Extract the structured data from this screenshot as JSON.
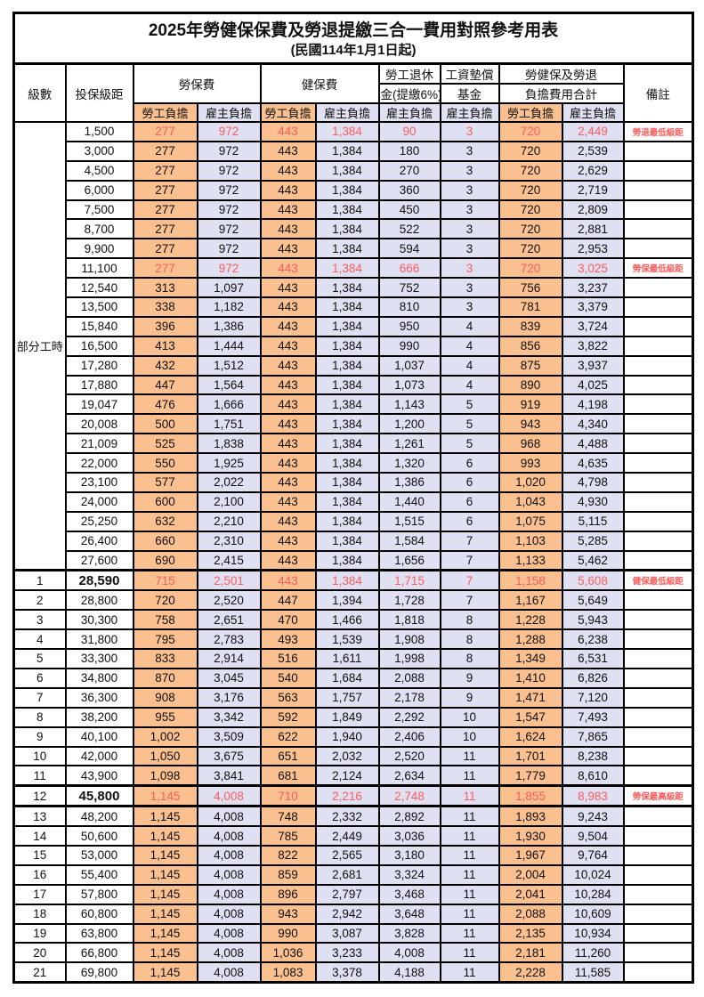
{
  "title": "2025年勞健保保費及勞退提繳三合一費用對照參考用表",
  "subtitle": "(民國114年1月1日起)",
  "header": {
    "level": "級數",
    "bracket": "投保級距",
    "labor_insurance": "勞保費",
    "health_insurance": "健保費",
    "pension_line1": "勞工退休",
    "pension_line2": "金(提繳6%)",
    "wage_fund_line1": "工資墊償",
    "wage_fund_line2": "基金",
    "total_line1": "勞健保及勞退",
    "total_line2": "負擔費用合計",
    "employee_burden": "勞工負擔",
    "employer_burden": "雇主負擔",
    "remark": "備註"
  },
  "group_label": "部分工時",
  "colors": {
    "employee_bg": "#fac090",
    "employer_bg": "#dfe0f2",
    "highlight_text": "#ff5c5c",
    "border": "#000000"
  },
  "rows": [
    {
      "level": "",
      "bracket": "1,500",
      "values": [
        "277",
        "972",
        "443",
        "1,384",
        "90",
        "3",
        "720",
        "2,449"
      ],
      "remark": "勞退最低級距",
      "highlight": true,
      "bold": false
    },
    {
      "level": "",
      "bracket": "3,000",
      "values": [
        "277",
        "972",
        "443",
        "1,384",
        "180",
        "3",
        "720",
        "2,539"
      ],
      "remark": "",
      "highlight": false,
      "bold": false
    },
    {
      "level": "",
      "bracket": "4,500",
      "values": [
        "277",
        "972",
        "443",
        "1,384",
        "270",
        "3",
        "720",
        "2,629"
      ],
      "remark": "",
      "highlight": false,
      "bold": false
    },
    {
      "level": "",
      "bracket": "6,000",
      "values": [
        "277",
        "972",
        "443",
        "1,384",
        "360",
        "3",
        "720",
        "2,719"
      ],
      "remark": "",
      "highlight": false,
      "bold": false
    },
    {
      "level": "",
      "bracket": "7,500",
      "values": [
        "277",
        "972",
        "443",
        "1,384",
        "450",
        "3",
        "720",
        "2,809"
      ],
      "remark": "",
      "highlight": false,
      "bold": false
    },
    {
      "level": "",
      "bracket": "8,700",
      "values": [
        "277",
        "972",
        "443",
        "1,384",
        "522",
        "3",
        "720",
        "2,881"
      ],
      "remark": "",
      "highlight": false,
      "bold": false
    },
    {
      "level": "",
      "bracket": "9,900",
      "values": [
        "277",
        "972",
        "443",
        "1,384",
        "594",
        "3",
        "720",
        "2,953"
      ],
      "remark": "",
      "highlight": false,
      "bold": false
    },
    {
      "level": "",
      "bracket": "11,100",
      "values": [
        "277",
        "972",
        "443",
        "1,384",
        "666",
        "3",
        "720",
        "3,025"
      ],
      "remark": "勞保最低級距",
      "highlight": true,
      "bold": false
    },
    {
      "level": "",
      "bracket": "12,540",
      "values": [
        "313",
        "1,097",
        "443",
        "1,384",
        "752",
        "3",
        "756",
        "3,237"
      ],
      "remark": "",
      "highlight": false,
      "bold": false
    },
    {
      "level": "",
      "bracket": "13,500",
      "values": [
        "338",
        "1,182",
        "443",
        "1,384",
        "810",
        "3",
        "781",
        "3,379"
      ],
      "remark": "",
      "highlight": false,
      "bold": false
    },
    {
      "level": "",
      "bracket": "15,840",
      "values": [
        "396",
        "1,386",
        "443",
        "1,384",
        "950",
        "4",
        "839",
        "3,724"
      ],
      "remark": "",
      "highlight": false,
      "bold": false
    },
    {
      "level": "",
      "bracket": "16,500",
      "values": [
        "413",
        "1,444",
        "443",
        "1,384",
        "990",
        "4",
        "856",
        "3,822"
      ],
      "remark": "",
      "highlight": false,
      "bold": false
    },
    {
      "level": "",
      "bracket": "17,280",
      "values": [
        "432",
        "1,512",
        "443",
        "1,384",
        "1,037",
        "4",
        "875",
        "3,937"
      ],
      "remark": "",
      "highlight": false,
      "bold": false
    },
    {
      "level": "",
      "bracket": "17,880",
      "values": [
        "447",
        "1,564",
        "443",
        "1,384",
        "1,073",
        "4",
        "890",
        "4,025"
      ],
      "remark": "",
      "highlight": false,
      "bold": false
    },
    {
      "level": "",
      "bracket": "19,047",
      "values": [
        "476",
        "1,666",
        "443",
        "1,384",
        "1,143",
        "5",
        "919",
        "4,198"
      ],
      "remark": "",
      "highlight": false,
      "bold": false
    },
    {
      "level": "",
      "bracket": "20,008",
      "values": [
        "500",
        "1,751",
        "443",
        "1,384",
        "1,200",
        "5",
        "943",
        "4,340"
      ],
      "remark": "",
      "highlight": false,
      "bold": false
    },
    {
      "level": "",
      "bracket": "21,009",
      "values": [
        "525",
        "1,838",
        "443",
        "1,384",
        "1,261",
        "5",
        "968",
        "4,488"
      ],
      "remark": "",
      "highlight": false,
      "bold": false
    },
    {
      "level": "",
      "bracket": "22,000",
      "values": [
        "550",
        "1,925",
        "443",
        "1,384",
        "1,320",
        "6",
        "993",
        "4,635"
      ],
      "remark": "",
      "highlight": false,
      "bold": false
    },
    {
      "level": "",
      "bracket": "23,100",
      "values": [
        "577",
        "2,022",
        "443",
        "1,384",
        "1,386",
        "6",
        "1,020",
        "4,798"
      ],
      "remark": "",
      "highlight": false,
      "bold": false
    },
    {
      "level": "",
      "bracket": "24,000",
      "values": [
        "600",
        "2,100",
        "443",
        "1,384",
        "1,440",
        "6",
        "1,043",
        "4,930"
      ],
      "remark": "",
      "highlight": false,
      "bold": false
    },
    {
      "level": "",
      "bracket": "25,250",
      "values": [
        "632",
        "2,210",
        "443",
        "1,384",
        "1,515",
        "6",
        "1,075",
        "5,115"
      ],
      "remark": "",
      "highlight": false,
      "bold": false
    },
    {
      "level": "",
      "bracket": "26,400",
      "values": [
        "660",
        "2,310",
        "443",
        "1,384",
        "1,584",
        "7",
        "1,103",
        "5,285"
      ],
      "remark": "",
      "highlight": false,
      "bold": false
    },
    {
      "level": "",
      "bracket": "27,600",
      "values": [
        "690",
        "2,415",
        "443",
        "1,384",
        "1,656",
        "7",
        "1,133",
        "5,462"
      ],
      "remark": "",
      "highlight": false,
      "bold": false
    },
    {
      "level": "1",
      "bracket": "28,590",
      "values": [
        "715",
        "2,501",
        "443",
        "1,384",
        "1,715",
        "7",
        "1,158",
        "5,608"
      ],
      "remark": "健保最低級距",
      "highlight": true,
      "bold": true
    },
    {
      "level": "2",
      "bracket": "28,800",
      "values": [
        "720",
        "2,520",
        "447",
        "1,394",
        "1,728",
        "7",
        "1,167",
        "5,649"
      ],
      "remark": "",
      "highlight": false,
      "bold": false
    },
    {
      "level": "3",
      "bracket": "30,300",
      "values": [
        "758",
        "2,651",
        "470",
        "1,466",
        "1,818",
        "8",
        "1,228",
        "5,943"
      ],
      "remark": "",
      "highlight": false,
      "bold": false
    },
    {
      "level": "4",
      "bracket": "31,800",
      "values": [
        "795",
        "2,783",
        "493",
        "1,539",
        "1,908",
        "8",
        "1,288",
        "6,238"
      ],
      "remark": "",
      "highlight": false,
      "bold": false
    },
    {
      "level": "5",
      "bracket": "33,300",
      "values": [
        "833",
        "2,914",
        "516",
        "1,611",
        "1,998",
        "8",
        "1,349",
        "6,531"
      ],
      "remark": "",
      "highlight": false,
      "bold": false
    },
    {
      "level": "6",
      "bracket": "34,800",
      "values": [
        "870",
        "3,045",
        "540",
        "1,684",
        "2,088",
        "9",
        "1,410",
        "6,826"
      ],
      "remark": "",
      "highlight": false,
      "bold": false
    },
    {
      "level": "7",
      "bracket": "36,300",
      "values": [
        "908",
        "3,176",
        "563",
        "1,757",
        "2,178",
        "9",
        "1,471",
        "7,120"
      ],
      "remark": "",
      "highlight": false,
      "bold": false
    },
    {
      "level": "8",
      "bracket": "38,200",
      "values": [
        "955",
        "3,342",
        "592",
        "1,849",
        "2,292",
        "10",
        "1,547",
        "7,493"
      ],
      "remark": "",
      "highlight": false,
      "bold": false
    },
    {
      "level": "9",
      "bracket": "40,100",
      "values": [
        "1,002",
        "3,509",
        "622",
        "1,940",
        "2,406",
        "10",
        "1,624",
        "7,865"
      ],
      "remark": "",
      "highlight": false,
      "bold": false
    },
    {
      "level": "10",
      "bracket": "42,000",
      "values": [
        "1,050",
        "3,675",
        "651",
        "2,032",
        "2,520",
        "11",
        "1,701",
        "8,238"
      ],
      "remark": "",
      "highlight": false,
      "bold": false
    },
    {
      "level": "11",
      "bracket": "43,900",
      "values": [
        "1,098",
        "3,841",
        "681",
        "2,124",
        "2,634",
        "11",
        "1,779",
        "8,610"
      ],
      "remark": "",
      "highlight": false,
      "bold": false
    },
    {
      "level": "12",
      "bracket": "45,800",
      "values": [
        "1,145",
        "4,008",
        "710",
        "2,216",
        "2,748",
        "11",
        "1,855",
        "8,983"
      ],
      "remark": "勞保最高級距",
      "highlight": true,
      "bold": true
    },
    {
      "level": "13",
      "bracket": "48,200",
      "values": [
        "1,145",
        "4,008",
        "748",
        "2,332",
        "2,892",
        "11",
        "1,893",
        "9,243"
      ],
      "remark": "",
      "highlight": false,
      "bold": false
    },
    {
      "level": "14",
      "bracket": "50,600",
      "values": [
        "1,145",
        "4,008",
        "785",
        "2,449",
        "3,036",
        "11",
        "1,930",
        "9,504"
      ],
      "remark": "",
      "highlight": false,
      "bold": false
    },
    {
      "level": "15",
      "bracket": "53,000",
      "values": [
        "1,145",
        "4,008",
        "822",
        "2,565",
        "3,180",
        "11",
        "1,967",
        "9,764"
      ],
      "remark": "",
      "highlight": false,
      "bold": false
    },
    {
      "level": "16",
      "bracket": "55,400",
      "values": [
        "1,145",
        "4,008",
        "859",
        "2,681",
        "3,324",
        "11",
        "2,004",
        "10,024"
      ],
      "remark": "",
      "highlight": false,
      "bold": false
    },
    {
      "level": "17",
      "bracket": "57,800",
      "values": [
        "1,145",
        "4,008",
        "896",
        "2,797",
        "3,468",
        "11",
        "2,041",
        "10,284"
      ],
      "remark": "",
      "highlight": false,
      "bold": false
    },
    {
      "level": "18",
      "bracket": "60,800",
      "values": [
        "1,145",
        "4,008",
        "943",
        "2,942",
        "3,648",
        "11",
        "2,088",
        "10,609"
      ],
      "remark": "",
      "highlight": false,
      "bold": false
    },
    {
      "level": "19",
      "bracket": "63,800",
      "values": [
        "1,145",
        "4,008",
        "990",
        "3,087",
        "3,828",
        "11",
        "2,135",
        "10,934"
      ],
      "remark": "",
      "highlight": false,
      "bold": false
    },
    {
      "level": "20",
      "bracket": "66,800",
      "values": [
        "1,145",
        "4,008",
        "1,036",
        "3,233",
        "4,008",
        "11",
        "2,181",
        "11,260"
      ],
      "remark": "",
      "highlight": false,
      "bold": false
    },
    {
      "level": "21",
      "bracket": "69,800",
      "values": [
        "1,145",
        "4,008",
        "1,083",
        "3,378",
        "4,188",
        "11",
        "2,228",
        "11,585"
      ],
      "remark": "",
      "highlight": false,
      "bold": false
    }
  ]
}
